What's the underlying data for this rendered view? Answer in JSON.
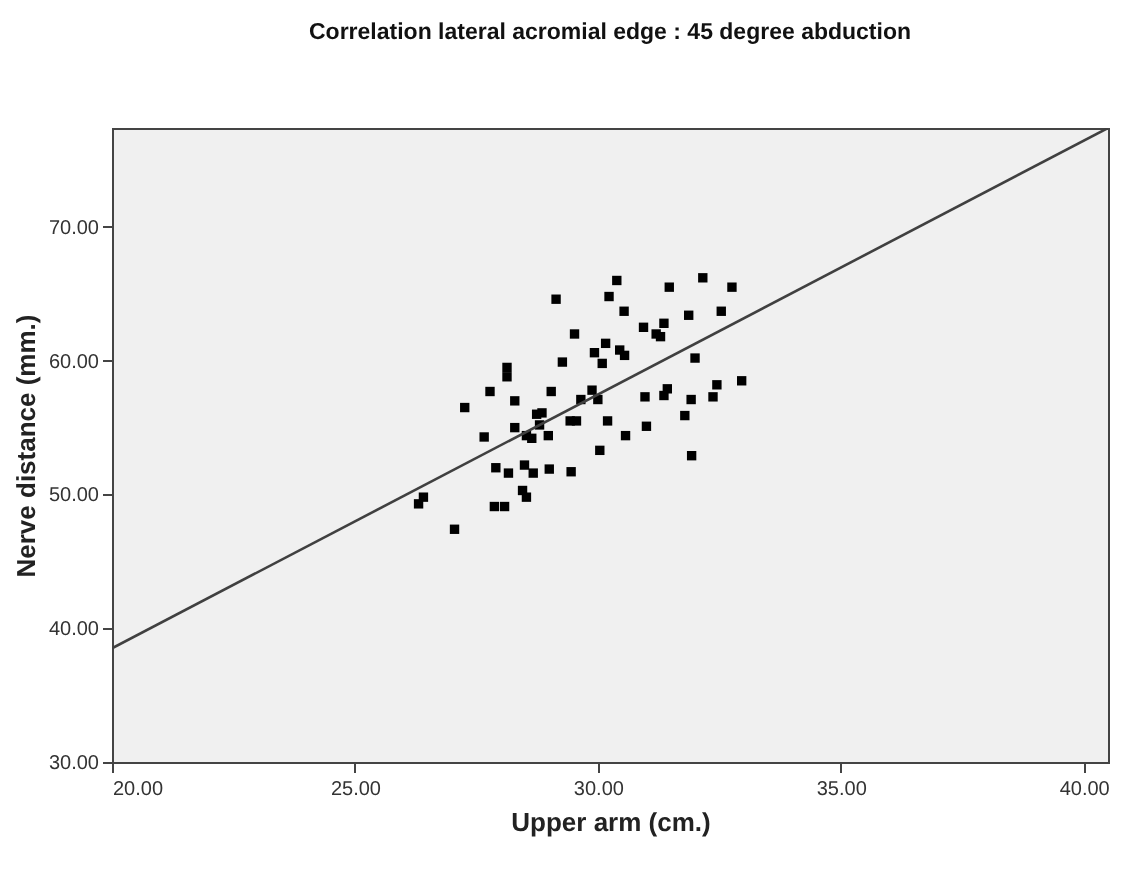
{
  "chart_data": {
    "type": "scatter",
    "title": "Correlation lateral acromial edge : 45 degree abduction",
    "xlabel": "Upper arm (cm.)",
    "ylabel": "Nerve distance (mm.)",
    "xlim": [
      20,
      40.5
    ],
    "ylim": [
      30,
      77.4
    ],
    "xticks": [
      {
        "value": 20,
        "label": "20.00"
      },
      {
        "value": 25,
        "label": "25.00"
      },
      {
        "value": 30,
        "label": "30.00"
      },
      {
        "value": 35,
        "label": "35.00"
      },
      {
        "value": 40,
        "label": "40.00"
      }
    ],
    "yticks": [
      {
        "value": 30,
        "label": "30.00"
      },
      {
        "value": 40,
        "label": "40.00"
      },
      {
        "value": 50,
        "label": "50.00"
      },
      {
        "value": 60,
        "label": "60.00"
      },
      {
        "value": 70,
        "label": "70.00"
      }
    ],
    "grid": false,
    "series": [
      {
        "marker": "square",
        "color": "#000000",
        "x": [
          26.31,
          26.41,
          27.05,
          27.26,
          27.66,
          27.78,
          27.9,
          27.87,
          28.08,
          28.13,
          28.13,
          28.16,
          28.29,
          28.29,
          28.49,
          28.45,
          28.53,
          28.53,
          28.64,
          28.67,
          28.74,
          28.8,
          28.85,
          28.98,
          29.0,
          29.04,
          29.14,
          29.27,
          29.43,
          29.45,
          29.56,
          29.52,
          29.65,
          29.88,
          29.93,
          30.0,
          30.04,
          30.09,
          30.16,
          30.2,
          30.23,
          30.39,
          30.45,
          30.55,
          30.54,
          30.57,
          30.94,
          30.97,
          31.0,
          31.2,
          31.29,
          31.36,
          31.36,
          31.43,
          31.47,
          31.79,
          31.87,
          31.92,
          31.93,
          32.0,
          32.16,
          32.37,
          32.45,
          32.54,
          32.76,
          32.96
        ],
        "values": [
          49.3,
          49.8,
          47.4,
          56.5,
          54.3,
          57.7,
          52.0,
          49.1,
          49.1,
          59.5,
          58.8,
          51.6,
          57.0,
          55.0,
          52.2,
          50.3,
          49.8,
          54.4,
          54.2,
          51.6,
          56.0,
          55.2,
          56.1,
          54.4,
          51.9,
          57.7,
          64.6,
          59.9,
          55.5,
          51.7,
          55.5,
          62.0,
          57.1,
          57.8,
          60.6,
          57.1,
          53.3,
          59.8,
          61.3,
          55.5,
          64.8,
          66.0,
          60.8,
          60.4,
          63.7,
          54.4,
          62.5,
          57.3,
          55.1,
          62.0,
          61.8,
          62.8,
          57.4,
          57.9,
          65.5,
          55.9,
          63.4,
          57.1,
          52.9,
          60.2,
          66.2,
          57.3,
          58.2,
          63.7,
          65.5,
          58.5
        ]
      },
      {
        "type": "line",
        "color": "#404040",
        "line_style": "solid",
        "x": [
          20,
          40.5
        ],
        "values": [
          38.5,
          77.4
        ]
      }
    ]
  }
}
